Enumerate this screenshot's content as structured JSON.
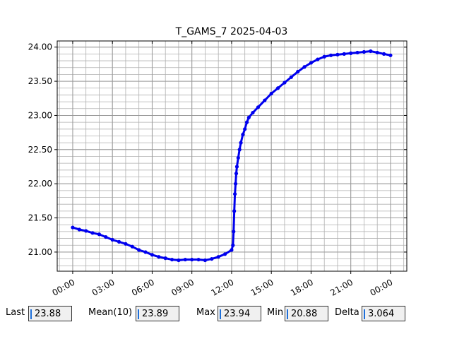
{
  "chart_data": {
    "type": "line",
    "title": "T_GAMS_7 2025-04-03",
    "x": [
      0,
      0.5,
      1,
      1.5,
      2,
      2.5,
      3,
      3.5,
      4,
      4.5,
      5,
      5.5,
      6,
      6.5,
      7,
      7.5,
      8,
      8.5,
      9,
      9.5,
      10,
      10.5,
      11,
      11.5,
      12,
      12.1,
      12.15,
      12.2,
      12.25,
      12.3,
      12.35,
      12.4,
      12.5,
      12.6,
      12.7,
      12.85,
      13,
      13.15,
      13.3,
      13.6,
      14,
      14.5,
      15,
      15.5,
      16,
      16.5,
      17,
      17.5,
      18,
      18.5,
      19,
      19.5,
      20,
      20.5,
      21,
      21.5,
      22,
      22.5,
      23,
      23.5,
      24
    ],
    "y": [
      21.36,
      21.33,
      21.31,
      21.28,
      21.26,
      21.22,
      21.18,
      21.15,
      21.12,
      21.08,
      21.03,
      21.0,
      20.96,
      20.93,
      20.91,
      20.89,
      20.88,
      20.89,
      20.89,
      20.89,
      20.88,
      20.9,
      20.93,
      20.97,
      21.03,
      21.1,
      21.3,
      21.6,
      21.85,
      22.0,
      22.15,
      22.25,
      22.38,
      22.5,
      22.6,
      22.72,
      22.8,
      22.9,
      22.97,
      23.04,
      23.12,
      23.22,
      23.32,
      23.4,
      23.48,
      23.56,
      23.64,
      23.71,
      23.77,
      23.82,
      23.86,
      23.88,
      23.89,
      23.9,
      23.91,
      23.92,
      23.93,
      23.94,
      23.92,
      23.9,
      23.88
    ],
    "color": "#0000ee",
    "xlim": [
      -1.17,
      25.23
    ],
    "ylim": [
      20.72,
      24.09
    ],
    "xticks": [
      {
        "value": 0,
        "label": "00:00"
      },
      {
        "value": 3,
        "label": "03:00"
      },
      {
        "value": 6,
        "label": "06:00"
      },
      {
        "value": 9,
        "label": "09:00"
      },
      {
        "value": 12,
        "label": "12:00"
      },
      {
        "value": 15,
        "label": "15:00"
      },
      {
        "value": 18,
        "label": "18:00"
      },
      {
        "value": 21,
        "label": "21:00"
      },
      {
        "value": 24,
        "label": "00:00"
      }
    ],
    "yticks": [
      {
        "value": 21,
        "label": "21.00"
      },
      {
        "value": 21.5,
        "label": "21.50"
      },
      {
        "value": 22,
        "label": "22.00"
      },
      {
        "value": 22.5,
        "label": "22.50"
      },
      {
        "value": 23,
        "label": "23.00"
      },
      {
        "value": 23.5,
        "label": "23.50"
      },
      {
        "value": 24,
        "label": "24.00"
      }
    ],
    "grid": true,
    "minor_grid": {
      "x": 1,
      "y": 0.1
    }
  },
  "stats": [
    {
      "label": "Last",
      "value": "23.88"
    },
    {
      "label": "Mean(10)",
      "value": "23.89"
    },
    {
      "label": "Max",
      "value": "23.94"
    },
    {
      "label": "Min",
      "value": "20.88"
    },
    {
      "label": "Delta",
      "value": "3.064"
    }
  ]
}
